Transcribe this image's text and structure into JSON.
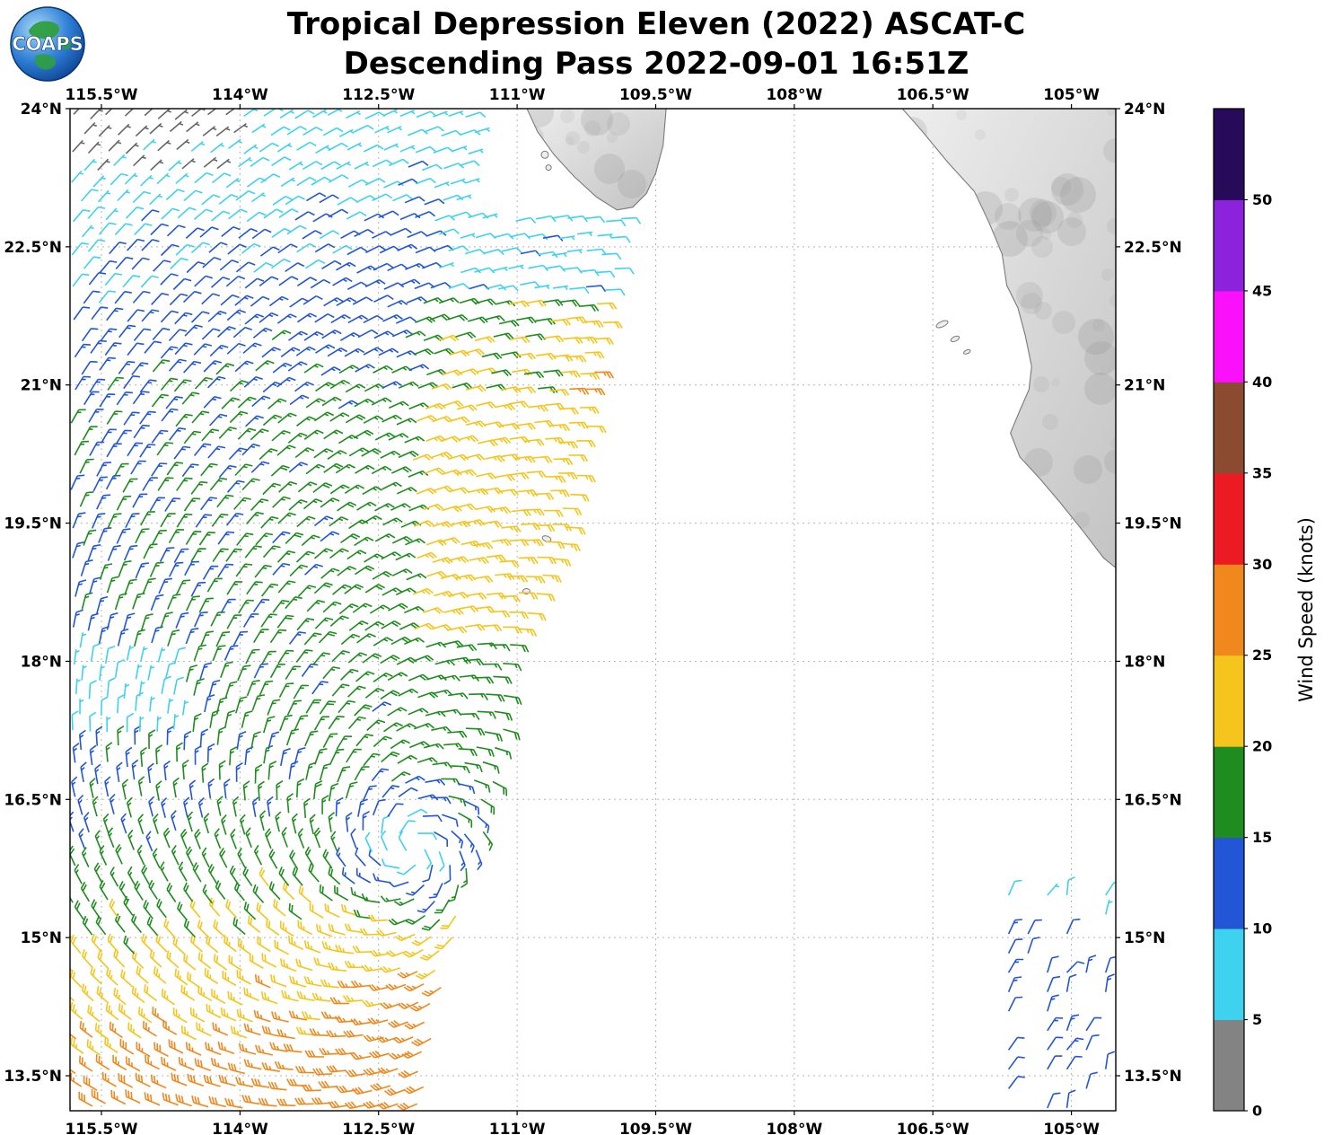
{
  "header": {
    "title_line1": "Tropical Depression Eleven (2022) ASCAT-C",
    "title_line2": "Descending Pass 2022-09-01 16:51Z"
  },
  "logo": {
    "text": "COAPS"
  },
  "axes": {
    "lon_range": [
      -115.84,
      -104.52
    ],
    "lat_range": [
      13.12,
      24.0
    ],
    "lon_ticks": [
      {
        "value": -115.5,
        "label": "115.5°W"
      },
      {
        "value": -114.0,
        "label": "114°W"
      },
      {
        "value": -112.5,
        "label": "112.5°W"
      },
      {
        "value": -111.0,
        "label": "111°W"
      },
      {
        "value": -109.5,
        "label": "109.5°W"
      },
      {
        "value": -108.0,
        "label": "108°W"
      },
      {
        "value": -106.5,
        "label": "106.5°W"
      },
      {
        "value": -105.0,
        "label": "105°W"
      }
    ],
    "lat_ticks": [
      {
        "value": 24.0,
        "label": "24°N"
      },
      {
        "value": 22.5,
        "label": "22.5°N"
      },
      {
        "value": 21.0,
        "label": "21°N"
      },
      {
        "value": 19.5,
        "label": "19.5°N"
      },
      {
        "value": 18.0,
        "label": "18°N"
      },
      {
        "value": 16.5,
        "label": "16.5°N"
      },
      {
        "value": 15.0,
        "label": "15°N"
      },
      {
        "value": 13.5,
        "label": "13.5°N"
      }
    ]
  },
  "colorbar": {
    "title": "Wind Speed (knots)",
    "levels": [
      0,
      5,
      10,
      15,
      20,
      25,
      30,
      35,
      40,
      45,
      50
    ],
    "tick_labels": [
      "0",
      "5",
      "10",
      "15",
      "20",
      "25",
      "30",
      "35",
      "40",
      "45",
      "50"
    ],
    "segment_colors": [
      "#838383",
      "#3FD1F0",
      "#2256D6",
      "#1E8C1E",
      "#F5C51D",
      "#F0881E",
      "#EC1B23",
      "#8A4B30",
      "#FB10FB",
      "#8D22DD",
      "#270A5A"
    ]
  },
  "chart_data": {
    "type": "wind_barb_map",
    "title": "Tropical Depression Eleven (2022) ASCAT-C",
    "subtitle": "Descending Pass 2022-09-01 16:51Z",
    "units": "knots",
    "lon_range": [
      -115.84,
      -104.52
    ],
    "lat_range": [
      13.12,
      24.0
    ],
    "speed_levels": [
      0,
      5,
      10,
      15,
      20,
      25,
      30,
      35,
      40,
      45,
      50
    ],
    "barb_colors": [
      "#666666",
      "#3FD1F0",
      "#2256D6",
      "#1E8C1E",
      "#F5C51D",
      "#F0881E",
      "#EC1B23",
      "#8A4B30",
      "#FB10FB",
      "#8D22DD",
      "#270A5A"
    ],
    "circulation_center": {
      "lon": -112.15,
      "lat": 15.95
    },
    "rotation": "cyclonic_counterclockwise",
    "inflow_deg": 22,
    "grid_spacing_deg": 0.185,
    "swath_right_edge": [
      [
        24.1,
        -110.05
      ],
      [
        22.6,
        -109.85
      ],
      [
        21.0,
        -110.15
      ],
      [
        19.3,
        -110.45
      ],
      [
        17.8,
        -111.1
      ],
      [
        16.3,
        -111.3
      ],
      [
        14.8,
        -111.75
      ],
      [
        13.0,
        -112.02
      ]
    ],
    "swath_gap": {
      "lat_min": 22.82,
      "lon_min": -111.45
    },
    "speed_field": {
      "base_kt": 16,
      "south_ramp": {
        "start_lat": 16.2,
        "kt_per_deg": 4.5,
        "cap_kt": 29.3
      },
      "north_falloff": {
        "start_lat": 20.6,
        "kt_per_deg": 2.9
      },
      "east_band": {
        "lon_min": -112.15,
        "lat_min": 18.2,
        "lat_max": 21.9,
        "add_kt": 4.5
      },
      "northeast_band": {
        "lon_min": -110.6,
        "lat_min": 20.8,
        "lat_max": 22.0,
        "add_kt": 2.5
      },
      "ne_cyan_cap": {
        "lat_min": 22.0,
        "lon_min": -111.9,
        "max_kt": 8.5
      },
      "west_light_patch": {
        "lat_min": 17.15,
        "lat_max": 18.15,
        "lon_max": -114.6,
        "kt": 7.5
      },
      "nw_reduction": {
        "lat_min": 23.2,
        "lon_max": -114.0,
        "sub_kt": 2.5
      },
      "lon_gradient": {
        "ref_lon": -113.5,
        "kt_per_deg": 0.7,
        "clamp_kt": 2
      },
      "center_calm_radius_deg": 1.0,
      "noise_kt": 3.5,
      "red_speckle": {
        "lat_max": 15.2,
        "kt": 31
      }
    },
    "secondary_patch": {
      "lon_min": -105.68,
      "lon_max": -104.62,
      "lat_min": 13.15,
      "lat_max": 15.6,
      "speed_kt": 11.5,
      "light_lat_min": 15.2,
      "light_kt": 8,
      "dir_from_deg": 25,
      "density": 0.55,
      "spacing_deg": 0.21
    },
    "map": {
      "coast_color": "#7a7a7a",
      "land_fill_light": "#efefef",
      "land_fill_dark": "#c2c2c2",
      "land_polygons": [
        {
          "name": "baja-california-tip",
          "points": [
            [
              -110.93,
              24.08
            ],
            [
              -110.78,
              23.75
            ],
            [
              -110.6,
              23.5
            ],
            [
              -110.38,
              23.26
            ],
            [
              -110.14,
              23.04
            ],
            [
              -109.92,
              22.9
            ],
            [
              -109.75,
              22.93
            ],
            [
              -109.6,
              23.08
            ],
            [
              -109.5,
              23.3
            ],
            [
              -109.42,
              23.6
            ],
            [
              -109.38,
              24.08
            ]
          ]
        },
        {
          "name": "mexico-mainland",
          "points": [
            [
              -106.9,
              24.08
            ],
            [
              -106.62,
              23.76
            ],
            [
              -106.34,
              23.42
            ],
            [
              -106.05,
              23.1
            ],
            [
              -105.89,
              22.76
            ],
            [
              -105.75,
              22.42
            ],
            [
              -105.7,
              22.08
            ],
            [
              -105.58,
              21.84
            ],
            [
              -105.5,
              21.54
            ],
            [
              -105.43,
              21.2
            ],
            [
              -105.46,
              20.95
            ],
            [
              -105.56,
              20.72
            ],
            [
              -105.66,
              20.48
            ],
            [
              -105.56,
              20.22
            ],
            [
              -105.34,
              19.98
            ],
            [
              -105.12,
              19.72
            ],
            [
              -104.88,
              19.42
            ],
            [
              -104.65,
              19.12
            ],
            [
              -104.4,
              18.92
            ],
            [
              -104.4,
              24.08
            ]
          ]
        }
      ],
      "islands": [
        {
          "lon": -106.4,
          "lat": 21.66,
          "rx": 7,
          "ry": 3,
          "rot": -25
        },
        {
          "lon": -106.26,
          "lat": 21.5,
          "rx": 5,
          "ry": 2.5,
          "rot": -25
        },
        {
          "lon": -106.13,
          "lat": 21.36,
          "rx": 4,
          "ry": 2,
          "rot": -25
        },
        {
          "lon": -110.7,
          "lat": 23.5,
          "rx": 4,
          "ry": 4,
          "rot": 0
        },
        {
          "lon": -110.66,
          "lat": 23.36,
          "rx": 3,
          "ry": 3,
          "rot": 0
        },
        {
          "lon": -110.68,
          "lat": 19.33,
          "rx": 5,
          "ry": 3,
          "rot": 20
        },
        {
          "lon": -110.9,
          "lat": 18.76,
          "rx": 4,
          "ry": 3,
          "rot": 0
        }
      ]
    }
  }
}
